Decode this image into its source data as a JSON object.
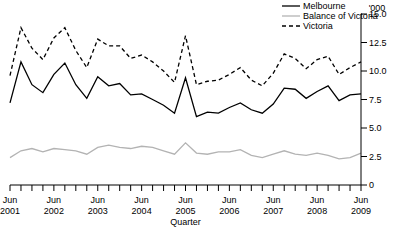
{
  "chart_data": {
    "type": "line",
    "x_label": "Quarter",
    "y_label": "'000",
    "categories": [
      "Jun 2001",
      null,
      null,
      null,
      "Jun 2002",
      null,
      null,
      null,
      "Jun 2003",
      null,
      null,
      null,
      "Jun 2004",
      null,
      null,
      null,
      "Jun 2005",
      null,
      null,
      null,
      "Jun 2006",
      null,
      null,
      null,
      "Jun 2007",
      null,
      null,
      null,
      "Jun 2008",
      null,
      null,
      null,
      "Jun 2009"
    ],
    "series": [
      {
        "name": "Melbourne",
        "color": "#000000",
        "line_style": "solid",
        "values": [
          7.2,
          10.8,
          8.8,
          8.1,
          9.7,
          10.7,
          8.8,
          7.6,
          9.5,
          8.7,
          8.9,
          7.9,
          8.0,
          7.5,
          7.0,
          6.3,
          9.4,
          6.0,
          6.4,
          6.3,
          6.8,
          7.2,
          6.6,
          6.3,
          7.1,
          8.5,
          8.4,
          7.6,
          8.2,
          8.7,
          7.4,
          7.9,
          8.0
        ]
      },
      {
        "name": "Balance of Victoria",
        "color": "#b3b3b3",
        "line_style": "solid",
        "values": [
          2.4,
          3.0,
          3.2,
          2.9,
          3.2,
          3.1,
          3.0,
          2.7,
          3.3,
          3.5,
          3.3,
          3.2,
          3.4,
          3.3,
          3.0,
          2.7,
          3.7,
          2.8,
          2.7,
          2.9,
          2.9,
          3.1,
          2.6,
          2.4,
          2.7,
          3.0,
          2.7,
          2.6,
          2.8,
          2.6,
          2.3,
          2.4,
          2.8
        ]
      },
      {
        "name": "Victoria",
        "color": "#000000",
        "line_style": "dashed",
        "values": [
          9.6,
          13.8,
          12.0,
          11.0,
          12.9,
          13.8,
          11.8,
          10.3,
          12.8,
          12.2,
          12.2,
          11.1,
          11.4,
          10.8,
          10.0,
          9.0,
          13.1,
          8.8,
          9.1,
          9.2,
          9.7,
          10.3,
          9.2,
          8.7,
          9.8,
          11.5,
          11.1,
          10.2,
          11.0,
          11.3,
          9.7,
          10.3,
          10.8
        ]
      }
    ],
    "ylim": [
      0,
      15
    ],
    "yticks": [
      0,
      2.5,
      {
        "value": 5,
        "label": "5.0"
      },
      7.5,
      {
        "value": 10,
        "label": "10.0"
      },
      12.5,
      {
        "value": 15,
        "label": "15.0"
      }
    ],
    "grid": false,
    "legend": "top-right"
  }
}
